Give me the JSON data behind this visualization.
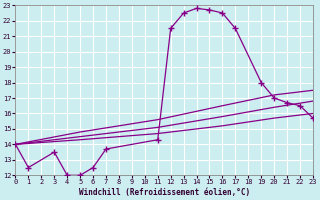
{
  "xlabel": "Windchill (Refroidissement éolien,°C)",
  "bg_color": "#cceef0",
  "grid_color": "#ffffff",
  "line_color": "#880088",
  "xlim": [
    0,
    23
  ],
  "ylim": [
    12,
    23
  ],
  "xticks": [
    0,
    1,
    2,
    3,
    4,
    5,
    6,
    7,
    8,
    9,
    10,
    11,
    12,
    13,
    14,
    15,
    16,
    17,
    18,
    19,
    20,
    21,
    22,
    23
  ],
  "yticks": [
    12,
    13,
    14,
    15,
    16,
    17,
    18,
    19,
    20,
    21,
    22,
    23
  ],
  "main_curve_x": [
    0,
    1,
    3,
    4,
    5,
    6,
    7,
    11,
    12,
    13,
    14,
    15,
    16,
    17,
    19,
    20,
    21,
    22,
    23
  ],
  "main_curve_y": [
    14.0,
    12.5,
    13.5,
    12.0,
    12.0,
    12.5,
    13.7,
    14.3,
    21.5,
    22.5,
    22.8,
    22.7,
    22.5,
    21.5,
    18.0,
    17.0,
    16.7,
    16.5,
    15.7
  ],
  "line1_x": [
    0,
    5,
    11,
    16,
    20,
    23
  ],
  "line1_y": [
    14.0,
    14.3,
    14.7,
    15.2,
    15.7,
    16.0
  ],
  "line2_x": [
    0,
    5,
    11,
    16,
    20,
    23
  ],
  "line2_y": [
    14.0,
    14.5,
    15.1,
    15.8,
    16.4,
    16.8
  ],
  "line3_x": [
    0,
    5,
    11,
    16,
    20,
    23
  ],
  "line3_y": [
    14.0,
    14.8,
    15.6,
    16.5,
    17.2,
    17.5
  ]
}
